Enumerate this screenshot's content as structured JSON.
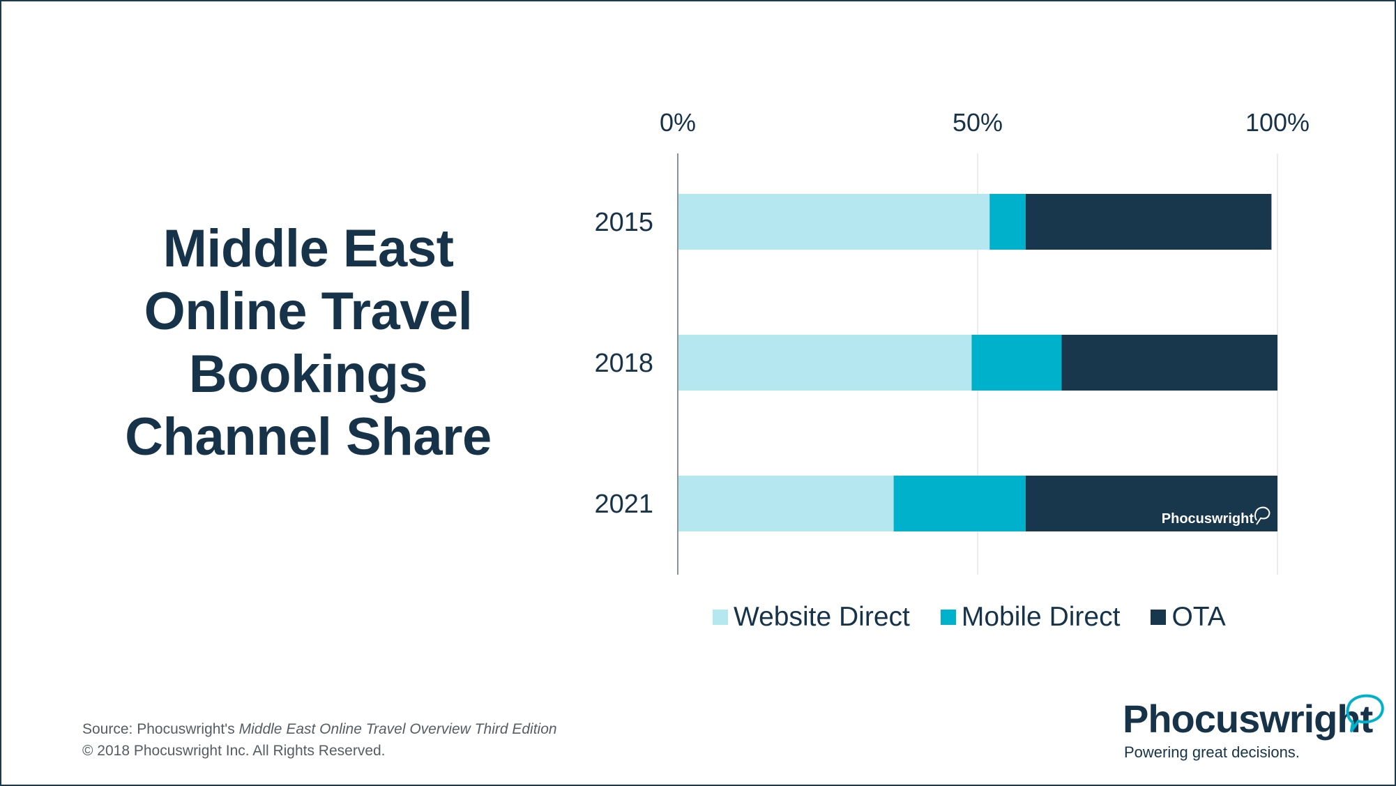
{
  "title_lines": [
    "Middle East",
    "Online Travel",
    "Bookings",
    "Channel Share"
  ],
  "chart_data": {
    "type": "bar",
    "orientation": "horizontal",
    "stacked": true,
    "title": "Middle East Online Travel Bookings Channel Share",
    "categories": [
      "2015",
      "2018",
      "2021"
    ],
    "series": [
      {
        "name": "Website Direct",
        "values": [
          52,
          49,
          36
        ],
        "color": "#b5e7f0"
      },
      {
        "name": "Mobile Direct",
        "values": [
          6,
          15,
          22
        ],
        "color": "#00b1cb"
      },
      {
        "name": "OTA",
        "values": [
          41,
          36,
          42
        ],
        "color": "#18374d"
      }
    ],
    "xticks": [
      "0%",
      "50%",
      "100%"
    ],
    "xlim": [
      0,
      100
    ],
    "x_axis_position": "top",
    "grid": true,
    "legend": "bottom",
    "watermark": "Phocuswright"
  },
  "source": {
    "prefix": "Source: Phocuswright's ",
    "italic": "Middle East Online Travel Overview Third Edition",
    "copyright": "© 2018 Phocuswright Inc. All Rights Reserved."
  },
  "brand": {
    "name": "Phocuswright",
    "tagline": "Powering great decisions.",
    "color": "#17334a",
    "accent": "#00b1cb"
  }
}
